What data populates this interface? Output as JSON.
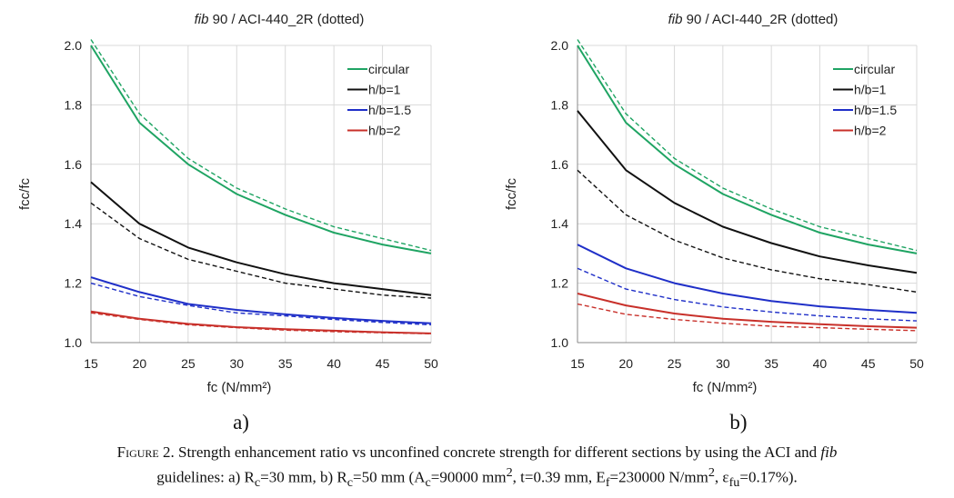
{
  "charts": [
    {
      "title_italic": "fib",
      "title_rest": " 90 / ACI-440_2R (dotted)",
      "panel_label": "a)"
    },
    {
      "title_italic": "fib",
      "title_rest": " 90 / ACI-440_2R (dotted)",
      "panel_label": "b)"
    }
  ],
  "chart_data": [
    {
      "type": "line",
      "title": "fib 90 / ACI-440_2R (dotted)",
      "xlabel": "fc (N/mm²)",
      "ylabel": "fcc/fc",
      "xlim": [
        15,
        50
      ],
      "ylim": [
        1.0,
        2.0
      ],
      "xticks": [
        15,
        20,
        25,
        30,
        35,
        40,
        45,
        50
      ],
      "yticks": [
        "1.0",
        "1.2",
        "1.4",
        "1.6",
        "1.8",
        "2.0"
      ],
      "grid": true,
      "legend_position": "top-right",
      "x": [
        15,
        20,
        25,
        30,
        35,
        40,
        45,
        50
      ],
      "series": [
        {
          "name": "circular",
          "color": "#1fa463",
          "style": "solid",
          "values": [
            2.0,
            1.74,
            1.6,
            1.5,
            1.43,
            1.37,
            1.33,
            1.3
          ]
        },
        {
          "name": "h/b=1",
          "color": "#111111",
          "style": "solid",
          "values": [
            1.54,
            1.4,
            1.32,
            1.27,
            1.23,
            1.2,
            1.18,
            1.16
          ]
        },
        {
          "name": "h/b=1.5",
          "color": "#1f2fc8",
          "style": "solid",
          "values": [
            1.22,
            1.17,
            1.13,
            1.11,
            1.095,
            1.083,
            1.073,
            1.065
          ]
        },
        {
          "name": "h/b=2",
          "color": "#c8302a",
          "style": "solid",
          "values": [
            1.105,
            1.08,
            1.063,
            1.052,
            1.045,
            1.04,
            1.035,
            1.031
          ]
        },
        {
          "color": "#1fa463",
          "style": "dashed",
          "values": [
            2.02,
            1.77,
            1.62,
            1.52,
            1.45,
            1.39,
            1.35,
            1.31
          ]
        },
        {
          "color": "#111111",
          "style": "dashed",
          "values": [
            1.47,
            1.35,
            1.28,
            1.24,
            1.2,
            1.18,
            1.16,
            1.15
          ]
        },
        {
          "color": "#1f2fc8",
          "style": "dashed",
          "values": [
            1.2,
            1.155,
            1.125,
            1.1,
            1.09,
            1.078,
            1.068,
            1.06
          ]
        },
        {
          "color": "#c8302a",
          "style": "dashed",
          "values": [
            1.1,
            1.078,
            1.06,
            1.05,
            1.042,
            1.037,
            1.033,
            1.03
          ]
        }
      ]
    },
    {
      "type": "line",
      "title": "fib 90 / ACI-440_2R (dotted)",
      "xlabel": "fc (N/mm²)",
      "ylabel": "fcc/fc",
      "xlim": [
        15,
        50
      ],
      "ylim": [
        1.0,
        2.0
      ],
      "xticks": [
        15,
        20,
        25,
        30,
        35,
        40,
        45,
        50
      ],
      "yticks": [
        "1.0",
        "1.2",
        "1.4",
        "1.6",
        "1.8",
        "2.0"
      ],
      "grid": true,
      "legend_position": "top-right",
      "x": [
        15,
        20,
        25,
        30,
        35,
        40,
        45,
        50
      ],
      "series": [
        {
          "name": "circular",
          "color": "#1fa463",
          "style": "solid",
          "values": [
            2.0,
            1.74,
            1.6,
            1.5,
            1.43,
            1.37,
            1.33,
            1.3
          ]
        },
        {
          "name": "h/b=1",
          "color": "#111111",
          "style": "solid",
          "values": [
            1.78,
            1.58,
            1.47,
            1.39,
            1.335,
            1.29,
            1.26,
            1.235
          ]
        },
        {
          "name": "h/b=1.5",
          "color": "#1f2fc8",
          "style": "solid",
          "values": [
            1.33,
            1.25,
            1.2,
            1.165,
            1.14,
            1.122,
            1.11,
            1.1
          ]
        },
        {
          "name": "h/b=2",
          "color": "#c8302a",
          "style": "solid",
          "values": [
            1.165,
            1.125,
            1.098,
            1.08,
            1.07,
            1.062,
            1.055,
            1.05
          ]
        },
        {
          "color": "#1fa463",
          "style": "dashed",
          "values": [
            2.02,
            1.77,
            1.62,
            1.52,
            1.45,
            1.39,
            1.35,
            1.31
          ]
        },
        {
          "color": "#111111",
          "style": "dashed",
          "values": [
            1.58,
            1.43,
            1.345,
            1.285,
            1.245,
            1.215,
            1.195,
            1.17
          ]
        },
        {
          "color": "#1f2fc8",
          "style": "dashed",
          "values": [
            1.25,
            1.18,
            1.145,
            1.12,
            1.103,
            1.09,
            1.08,
            1.073
          ]
        },
        {
          "color": "#c8302a",
          "style": "dashed",
          "values": [
            1.13,
            1.095,
            1.078,
            1.065,
            1.055,
            1.05,
            1.045,
            1.04
          ]
        }
      ]
    }
  ],
  "caption": {
    "line1_prefix": "Figure 2.",
    "line1_text": " Strength enhancement ratio vs unconfined concrete strength for different sections by using the ACI and ",
    "line1_italic": "fib",
    "line2": {
      "t1": "guidelines: a) R",
      "s1": "c",
      "t2": "=30 mm, b) R",
      "s2": "c",
      "t3": "=50 mm (A",
      "s3": "c",
      "t4": "=90000 mm",
      "p4": "2",
      "t5": ", t=0.39 mm, E",
      "s5": "f",
      "t6": "=230000 N/mm",
      "p6": "2",
      "t7": ", ε",
      "s7": "fu",
      "t8": "=0.17%)."
    }
  }
}
